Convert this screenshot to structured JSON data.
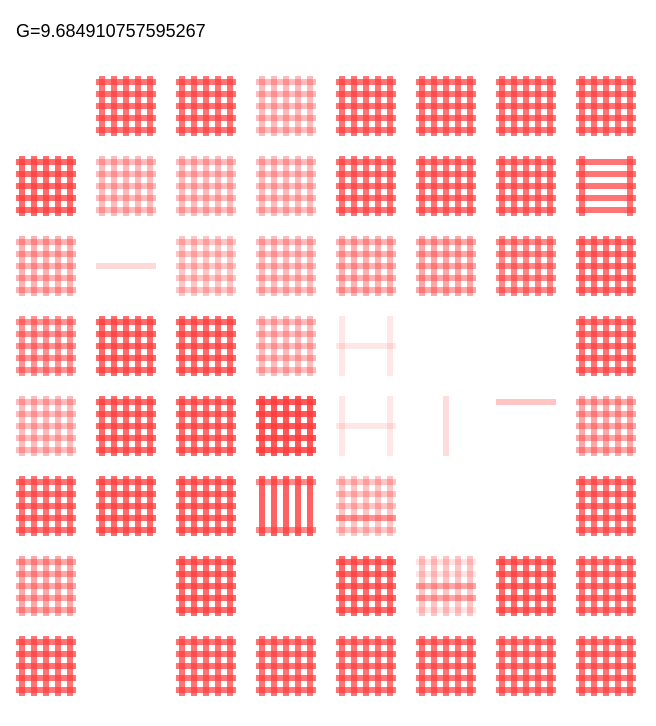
{
  "readout": "G=9.684910757595267",
  "colors": {
    "stripe": "#ff3b3b",
    "background": "#ffffff"
  },
  "grid": {
    "rows": 8,
    "cols": 8,
    "cells": [
      [
        null,
        {
          "h": [
            0.7,
            0.7,
            0.7,
            0.7,
            0.7
          ],
          "v": [
            0.7,
            0.7,
            0.7,
            0.7,
            0.7
          ]
        },
        {
          "h": [
            0.7,
            0.7,
            0.7,
            0.7,
            0.7
          ],
          "v": [
            0.7,
            0.7,
            0.7,
            0.7,
            0.7
          ]
        },
        {
          "h": [
            0.35,
            0.35,
            0.35,
            0.35,
            0.35
          ],
          "v": [
            0.35,
            0.35,
            0.35,
            0.35,
            0.35
          ]
        },
        {
          "h": [
            0.7,
            0.7,
            0.7,
            0.7,
            0.7
          ],
          "v": [
            0.7,
            0.7,
            0.7,
            0.7,
            0.7
          ]
        },
        {
          "h": [
            0.7,
            0.7,
            0.7,
            0.7,
            0.7
          ],
          "v": [
            0.7,
            0.7,
            0.7,
            0.7,
            0.7
          ]
        },
        {
          "h": [
            0.7,
            0.7,
            0.7,
            0.7,
            0.7
          ],
          "v": [
            0.7,
            0.7,
            0.7,
            0.7,
            0.7
          ]
        },
        {
          "h": [
            0.7,
            0.7,
            0.7,
            0.7,
            0.7
          ],
          "v": [
            0.7,
            0.7,
            0.7,
            0.7,
            0.7
          ]
        }
      ],
      [
        {
          "h": [
            0.75,
            0.75,
            0.75,
            0.75,
            0.75
          ],
          "v": [
            0.75,
            0.75,
            0.75,
            0.75,
            0.75
          ]
        },
        {
          "h": [
            0.35,
            0.35,
            0.35,
            0.35,
            0.35
          ],
          "v": [
            0.35,
            0.35,
            0.35,
            0.35,
            0.35
          ]
        },
        {
          "h": [
            0.35,
            0.35,
            0.35,
            0.35,
            0.35
          ],
          "v": [
            0.35,
            0.35,
            0.35,
            0.35,
            0.35
          ]
        },
        {
          "h": [
            0.35,
            0.35,
            0.35,
            0.35,
            0.35
          ],
          "v": [
            0.35,
            0.35,
            0.35,
            0.35,
            0.35
          ]
        },
        {
          "h": [
            0.7,
            0.7,
            0.7,
            0.7,
            0.7
          ],
          "v": [
            0.7,
            0.7,
            0.7,
            0.7,
            0.7
          ]
        },
        {
          "h": [
            0.7,
            0.7,
            0.7,
            0.7,
            0.7
          ],
          "v": [
            0.7,
            0.7,
            0.7,
            0.7,
            0.7
          ]
        },
        {
          "h": [
            0.7,
            0.7,
            0.7,
            0.7,
            0.7
          ],
          "v": [
            0.7,
            0.7,
            0.7,
            0.7,
            0.7
          ]
        },
        {
          "h": [
            0.7,
            0.7,
            0.7,
            0.7,
            0.7
          ],
          "v": [
            0.7,
            0.0,
            0.0,
            0.0,
            0.7
          ]
        }
      ],
      [
        {
          "h": [
            0.4,
            0.4,
            0.4,
            0.4,
            0.4
          ],
          "v": [
            0.4,
            0.4,
            0.4,
            0.4,
            0.4
          ]
        },
        {
          "h": [
            0,
            0,
            0.2,
            0,
            0
          ],
          "v": [
            0,
            0,
            0,
            0,
            0
          ]
        },
        {
          "h": [
            0.3,
            0.3,
            0.3,
            0.3,
            0.3
          ],
          "v": [
            0.3,
            0.3,
            0.3,
            0.3,
            0.3
          ]
        },
        {
          "h": [
            0.35,
            0.35,
            0.35,
            0.35,
            0.35
          ],
          "v": [
            0.35,
            0.35,
            0.35,
            0.35,
            0.35
          ]
        },
        {
          "h": [
            0.4,
            0.4,
            0.4,
            0.4,
            0.4
          ],
          "v": [
            0.4,
            0.4,
            0.4,
            0.4,
            0.4
          ]
        },
        {
          "h": [
            0.45,
            0.45,
            0.45,
            0.45,
            0.45
          ],
          "v": [
            0.45,
            0.45,
            0.45,
            0.45,
            0.45
          ]
        },
        {
          "h": [
            0.6,
            0.6,
            0.6,
            0.6,
            0.6
          ],
          "v": [
            0.6,
            0.6,
            0.6,
            0.6,
            0.6
          ]
        },
        {
          "h": [
            0.7,
            0.7,
            0.7,
            0.7,
            0.7
          ],
          "v": [
            0.7,
            0.7,
            0.7,
            0.7,
            0.7
          ]
        }
      ],
      [
        {
          "h": [
            0.55,
            0.55,
            0.55,
            0.55,
            0.55
          ],
          "v": [
            0.55,
            0.55,
            0.55,
            0.55,
            0.55
          ]
        },
        {
          "h": [
            0.75,
            0.75,
            0.75,
            0.75,
            0.75
          ],
          "v": [
            0.75,
            0.75,
            0.75,
            0.75,
            0.75
          ]
        },
        {
          "h": [
            0.75,
            0.75,
            0.75,
            0.75,
            0.75
          ],
          "v": [
            0.75,
            0.75,
            0.75,
            0.75,
            0.75
          ]
        },
        {
          "h": [
            0.35,
            0.35,
            0.35,
            0.35,
            0.35
          ],
          "v": [
            0.35,
            0.35,
            0.35,
            0.35,
            0.35
          ]
        },
        {
          "h": [
            0,
            0,
            0.12,
            0,
            0
          ],
          "v": [
            0.12,
            0,
            0,
            0,
            0.12
          ]
        },
        null,
        null,
        {
          "h": [
            0.7,
            0.7,
            0.7,
            0.7,
            0.7
          ],
          "v": [
            0.7,
            0.7,
            0.7,
            0.7,
            0.7
          ]
        }
      ],
      [
        {
          "h": [
            0.35,
            0.35,
            0.35,
            0.35,
            0.35
          ],
          "v": [
            0.35,
            0.35,
            0.35,
            0.35,
            0.35
          ]
        },
        {
          "h": [
            0.75,
            0.75,
            0.75,
            0.75,
            0.75
          ],
          "v": [
            0.75,
            0.75,
            0.75,
            0.75,
            0.75
          ]
        },
        {
          "h": [
            0.75,
            0.75,
            0.75,
            0.75,
            0.75
          ],
          "v": [
            0.75,
            0.75,
            0.75,
            0.75,
            0.75
          ]
        },
        {
          "h": [
            0.85,
            0.85,
            0.85,
            0.85,
            0.85
          ],
          "v": [
            0.85,
            0.85,
            0.85,
            0.85,
            0.85
          ]
        },
        {
          "h": [
            0,
            0,
            0.12,
            0,
            0
          ],
          "v": [
            0.12,
            0,
            0,
            0,
            0.12
          ]
        },
        {
          "h": [
            0,
            0,
            0,
            0,
            0
          ],
          "v": [
            0,
            0,
            0.18,
            0,
            0
          ]
        },
        {
          "h": [
            0.3,
            0,
            0,
            0,
            0
          ],
          "v": [
            0,
            0,
            0,
            0,
            0
          ]
        },
        {
          "h": [
            0.45,
            0.45,
            0.45,
            0.45,
            0.45
          ],
          "v": [
            0.45,
            0.45,
            0.45,
            0.45,
            0.45
          ]
        }
      ],
      [
        {
          "h": [
            0.7,
            0.7,
            0.7,
            0.7,
            0.7
          ],
          "v": [
            0.7,
            0.7,
            0.7,
            0.7,
            0.7
          ]
        },
        {
          "h": [
            0.75,
            0.75,
            0.75,
            0.75,
            0.75
          ],
          "v": [
            0.75,
            0.75,
            0.75,
            0.75,
            0.75
          ]
        },
        {
          "h": [
            0.75,
            0.75,
            0.75,
            0.75,
            0.75
          ],
          "v": [
            0.75,
            0.75,
            0.75,
            0.75,
            0.75
          ]
        },
        {
          "h": [
            0.6,
            0,
            0,
            0,
            0.6
          ],
          "v": [
            0.8,
            0.8,
            0.8,
            0.8,
            0.8
          ]
        },
        {
          "h": [
            0.3,
            0.3,
            0.3,
            0.55,
            0.3
          ],
          "v": [
            0.3,
            0.3,
            0.3,
            0.3,
            0.3
          ]
        },
        null,
        null,
        {
          "h": [
            0.7,
            0.7,
            0.7,
            0.7,
            0.7
          ],
          "v": [
            0.7,
            0.7,
            0.7,
            0.7,
            0.7
          ]
        }
      ],
      [
        {
          "h": [
            0.45,
            0.45,
            0.45,
            0.45,
            0.45
          ],
          "v": [
            0.45,
            0.45,
            0.45,
            0.45,
            0.45
          ]
        },
        null,
        {
          "h": [
            0.75,
            0.75,
            0.75,
            0.75,
            0.75
          ],
          "v": [
            0.75,
            0.75,
            0.75,
            0.75,
            0.75
          ]
        },
        null,
        {
          "h": [
            0.75,
            0.75,
            0.75,
            0.75,
            0.75
          ],
          "v": [
            0.75,
            0.75,
            0.75,
            0.75,
            0.75
          ]
        },
        {
          "h": [
            0.15,
            0.15,
            0.45,
            0.45,
            0.15
          ],
          "v": [
            0.3,
            0.3,
            0.3,
            0.3,
            0.3
          ]
        },
        {
          "h": [
            0.75,
            0.75,
            0.75,
            0.75,
            0.75
          ],
          "v": [
            0.75,
            0.75,
            0.75,
            0.75,
            0.75
          ]
        },
        {
          "h": [
            0.7,
            0.7,
            0.7,
            0.7,
            0.7
          ],
          "v": [
            0.7,
            0.7,
            0.7,
            0.7,
            0.7
          ]
        }
      ],
      [
        {
          "h": [
            0.7,
            0.7,
            0.7,
            0.7,
            0.7
          ],
          "v": [
            0.7,
            0.7,
            0.7,
            0.7,
            0.7
          ]
        },
        null,
        {
          "h": [
            0.7,
            0.7,
            0.7,
            0.7,
            0.7
          ],
          "v": [
            0.7,
            0.7,
            0.7,
            0.7,
            0.7
          ]
        },
        {
          "h": [
            0.7,
            0.7,
            0.7,
            0.7,
            0.7
          ],
          "v": [
            0.7,
            0.7,
            0.7,
            0.7,
            0.7
          ]
        },
        {
          "h": [
            0.7,
            0.7,
            0.7,
            0.7,
            0.7
          ],
          "v": [
            0.7,
            0.7,
            0.7,
            0.7,
            0.7
          ]
        },
        {
          "h": [
            0.7,
            0.7,
            0.7,
            0.7,
            0.7
          ],
          "v": [
            0.7,
            0.7,
            0.7,
            0.7,
            0.7
          ]
        },
        {
          "h": [
            0.7,
            0.7,
            0.7,
            0.7,
            0.7
          ],
          "v": [
            0.7,
            0.7,
            0.7,
            0.7,
            0.7
          ]
        },
        {
          "h": [
            0.7,
            0.7,
            0.7,
            0.7,
            0.7
          ],
          "v": [
            0.7,
            0.7,
            0.7,
            0.7,
            0.7
          ]
        }
      ]
    ]
  }
}
